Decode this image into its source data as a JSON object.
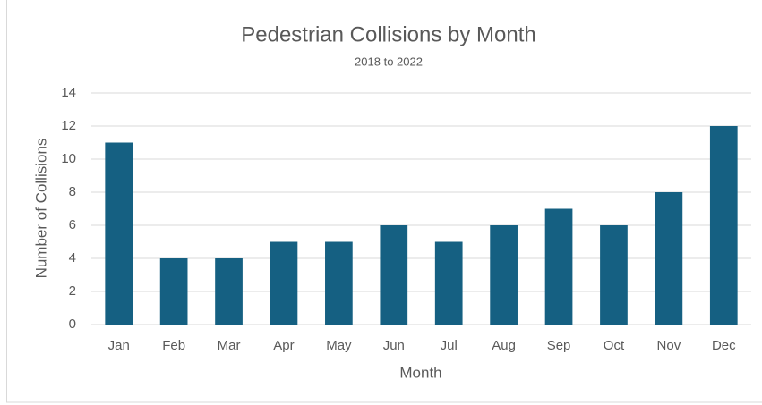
{
  "chart_data": {
    "type": "bar",
    "title": "Pedestrian Collisions by Month",
    "subtitle": "2018 to 2022",
    "x_label": "Month",
    "y_label": "Number of Collisions",
    "categories": [
      "Jan",
      "Feb",
      "Mar",
      "Apr",
      "May",
      "Jun",
      "Jul",
      "Aug",
      "Sep",
      "Oct",
      "Nov",
      "Dec"
    ],
    "values": [
      11,
      4,
      4,
      5,
      5,
      6,
      5,
      6,
      7,
      6,
      8,
      12
    ],
    "color": "#156082",
    "ylim": [
      0,
      14
    ],
    "yticks": [
      0,
      2,
      4,
      6,
      8,
      10,
      12,
      14
    ],
    "grid": true
  }
}
